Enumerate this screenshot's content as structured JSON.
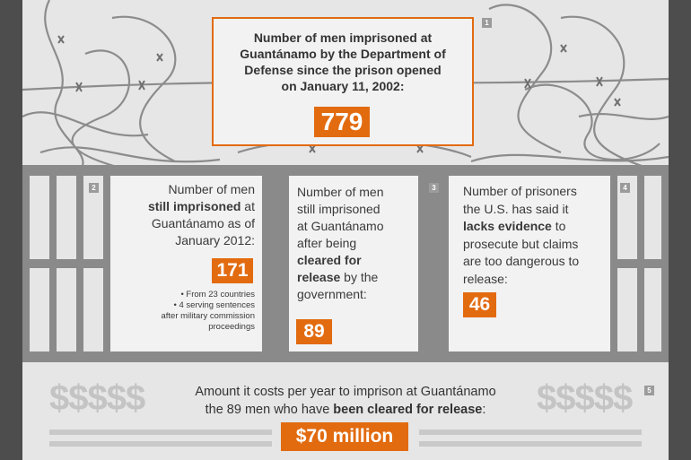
{
  "markers": [
    "1",
    "2",
    "3",
    "4",
    "5"
  ],
  "top": {
    "lines": [
      "Number of men imprisoned at",
      "Guantánamo by the Department of",
      "Defense since the prison opened",
      "on January 11, 2002:"
    ],
    "value": "779"
  },
  "box2": {
    "l1": "Number of men",
    "l2_bold": "still imprisoned",
    "l2_rest": " at",
    "l3": "Guantánamo as of",
    "l4": "January 2012:",
    "value": "171",
    "bullet1": "• From 23 countries",
    "bullet2a": "• 4 serving sentences",
    "bullet2b": "after military commission",
    "bullet2c": "proceedings"
  },
  "box3": {
    "l1": "Number of men",
    "l2": "still imprisoned",
    "l3": "at Guantánamo",
    "l4": "after being",
    "l5_bold": "cleared for",
    "l6_bold": "release",
    "l6_rest": " by the",
    "l7": "government:",
    "value": "89"
  },
  "box4": {
    "l1": "Number of prisoners",
    "l2": "the U.S. has said it",
    "l3_bold": "lacks evidence",
    "l3_rest": " to",
    "l4": "prosecute but claims",
    "l5": "are too dangerous to",
    "l6": "release:",
    "value": "46"
  },
  "cost": {
    "dollars": "$$$$$",
    "l1": "Amount it costs per year to imprison at Guantánamo",
    "l2_a": "the 89 men who have ",
    "l2_bold": "been cleared for release",
    "l2_b": ":",
    "value": "$70 million"
  }
}
